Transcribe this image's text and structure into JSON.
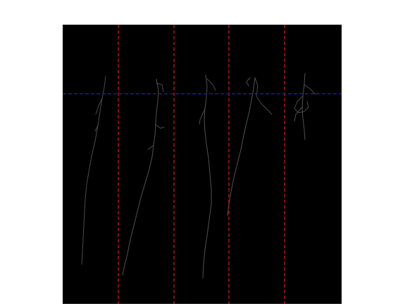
{
  "figure": {
    "background_color": "#ffffff",
    "image_background_color": "#000000",
    "vertical_guide_color": "#c0181c",
    "horizontal_guide_color": "#1a1aa8",
    "root_color": "#4a4a4a",
    "vertical_guide_count": 4,
    "horizontal_guide_count": 1,
    "root_sample_count": 5
  }
}
